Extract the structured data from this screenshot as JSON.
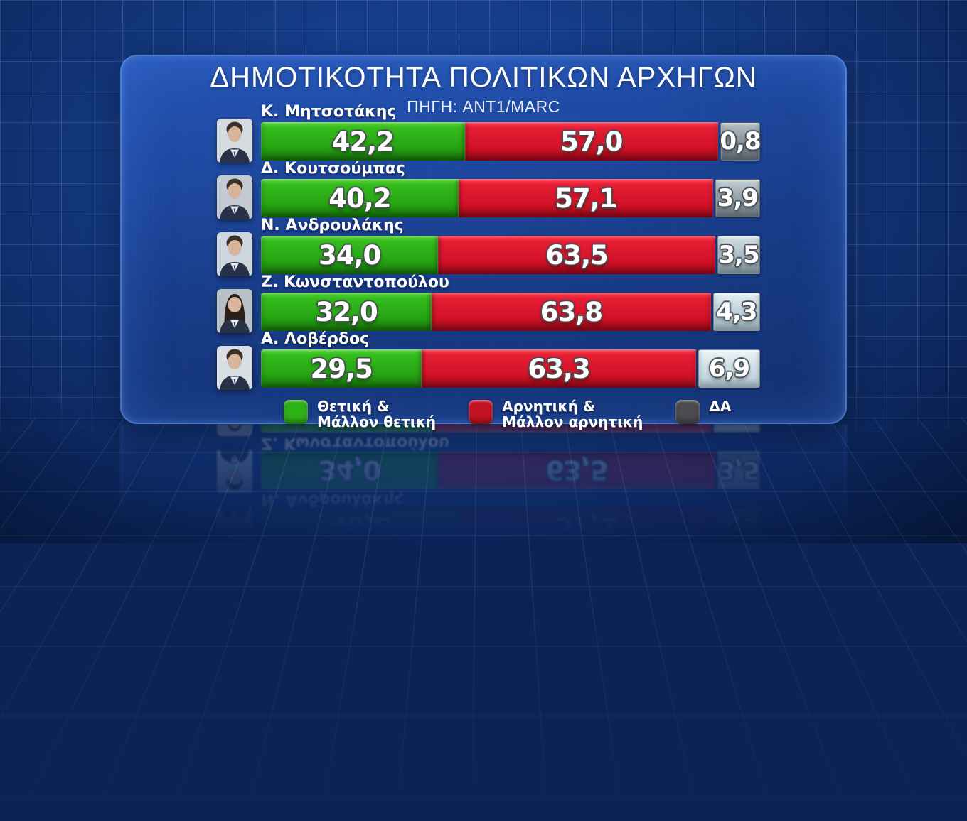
{
  "title": "ΔΗΜΟΤΙΚΟΤΗΤΑ ΠΟΛΙΤΙΚΩΝ ΑΡΧΗΓΩΝ",
  "source": "ΠΗΓΗ: ANT1/MARC",
  "legend": {
    "positive_line1": "Θετική &",
    "positive_line2": "Μάλλον θετική",
    "negative_line1": "Αρνητική &",
    "negative_line2": "Μάλλον αρνητική",
    "da": "ΔΑ"
  },
  "colors": {
    "positive": "#2aa915",
    "negative": "#d8152b",
    "da_swatch": "#4c4c50",
    "panel_blue": "#1e4da0",
    "background_navy": "#0b2355"
  },
  "rows": [
    {
      "name": "Κ. Μητσοτάκης",
      "positive": "42,2",
      "negative": "57,0",
      "da": "0,8"
    },
    {
      "name": "Δ. Κουτσούμπας",
      "positive": "40,2",
      "negative": "57,1",
      "da": "3,9"
    },
    {
      "name": "Ν. Ανδρουλάκης",
      "positive": "34,0",
      "negative": "63,5",
      "da": "3,5"
    },
    {
      "name": "Ζ. Κωνσταντοπούλου",
      "positive": "32,0",
      "negative": "63,8",
      "da": "4,3"
    },
    {
      "name": "Α. Λοβέρδος",
      "positive": "29,5",
      "negative": "63,3",
      "da": "6,9"
    }
  ],
  "chart_data": {
    "type": "bar",
    "orientation": "horizontal",
    "stacked": true,
    "unit": "%",
    "title": "ΔΗΜΟΤΙΚΟΤΗΤΑ ΠΟΛΙΤΙΚΩΝ ΑΡΧΗΓΩΝ",
    "subtitle": "ΠΗΓΗ: ANT1/MARC",
    "categories": [
      "Κ. Μητσοτάκης",
      "Δ. Κουτσούμπας",
      "Ν. Ανδρουλάκης",
      "Ζ. Κωνσταντοπούλου",
      "Α. Λοβέρδος"
    ],
    "series": [
      {
        "name": "Θετική & Μάλλον θετική",
        "color": "#2aa915",
        "values": [
          42.2,
          40.2,
          34.0,
          32.0,
          29.5
        ]
      },
      {
        "name": "Αρνητική & Μάλλον αρνητική",
        "color": "#d8152b",
        "values": [
          57.0,
          57.1,
          63.5,
          63.8,
          63.3
        ]
      },
      {
        "name": "ΔΑ",
        "color": "#8d98a2",
        "values": [
          0.8,
          3.9,
          3.5,
          4.3,
          6.9
        ]
      }
    ],
    "xlim": [
      0,
      100
    ],
    "legend_position": "bottom",
    "grid": false
  }
}
